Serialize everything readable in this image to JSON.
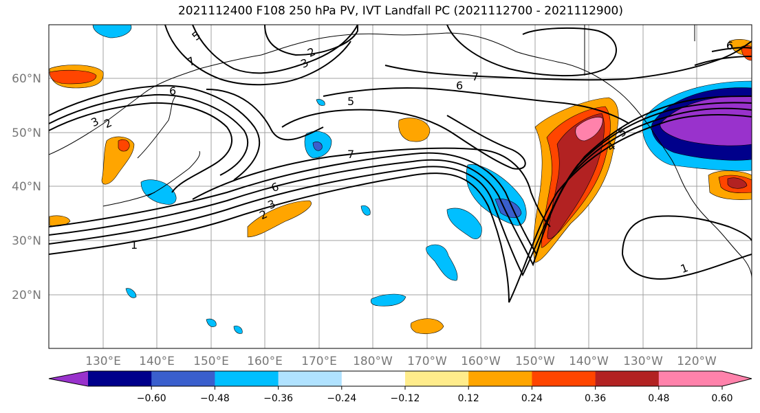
{
  "title": "2021112400 F108 250 hPa PV, IVT Landfall PC (2021112700 - 2021112900)",
  "lat_labels": [
    "20°N",
    "30°N",
    "40°N",
    "50°N",
    "60°N"
  ],
  "lon_labels": [
    "130°E",
    "140°E",
    "150°E",
    "160°E",
    "170°E",
    "180°W",
    "170°W",
    "160°W",
    "150°W",
    "140°W",
    "130°W",
    "120°W"
  ],
  "contour_labels": [
    "5",
    "7",
    "2",
    "3",
    "6",
    "3",
    "2",
    "6",
    "7",
    "6",
    "5",
    "7",
    "5",
    "4",
    "6",
    "3",
    "2",
    "1",
    "1",
    "6"
  ],
  "colorbar": {
    "ticks": [
      "−0.60",
      "−0.48",
      "−0.36",
      "−0.24",
      "−0.12",
      "0.12",
      "0.24",
      "0.36",
      "0.48",
      "0.60"
    ],
    "colors": [
      "#9932cc",
      "#00008b",
      "#3a5fcd",
      "#00bfff",
      "#b0e2ff",
      "#ffffff",
      "#ffec8b",
      "#ffa500",
      "#ff4500",
      "#b22222",
      "#ff82ab",
      "#ff82ab"
    ]
  }
}
